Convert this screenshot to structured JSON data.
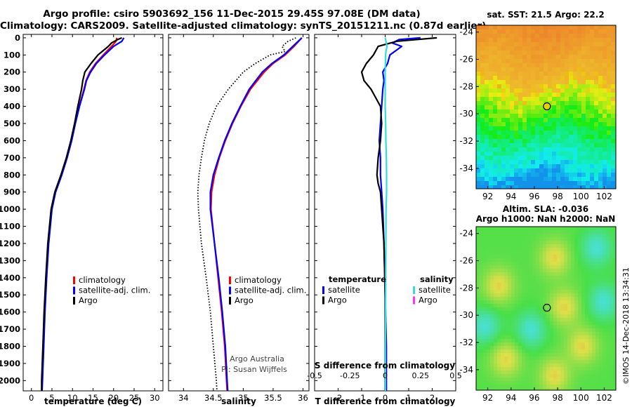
{
  "header": {
    "line1": "Argo profile: csiro 5903692_156 11-Dec-2015 29.45S 97.08E (DM data)",
    "line2": "Climatology: CARS2009. Satellite-adjusted climatology: synTS_20151211.nc (0.87d earlier)"
  },
  "depth_ticks": [
    0,
    100,
    200,
    300,
    400,
    500,
    600,
    700,
    800,
    900,
    1000,
    1100,
    1200,
    1300,
    1400,
    1500,
    1600,
    1700,
    1800,
    1900,
    2000
  ],
  "chart_data": [
    {
      "id": "temperature",
      "type": "line",
      "xlabel": "temperature (deg C)",
      "xlim": [
        -2,
        32
      ],
      "ylim": [
        2060,
        -20
      ],
      "xticks": [
        0,
        5,
        10,
        15,
        20,
        25,
        30
      ],
      "legend": [
        "climatology",
        "satellite-adj. clim.",
        "Argo"
      ],
      "series": [
        {
          "name": "climatology",
          "color": "#ff0000",
          "depth": [
            0,
            20,
            50,
            100,
            150,
            200,
            250,
            300,
            400,
            500,
            600,
            700,
            800,
            900,
            1000,
            1200,
            1400,
            1600,
            1800,
            2000,
            2060
          ],
          "values": [
            20.8,
            20.6,
            19.5,
            17.5,
            15.6,
            14.2,
            13.3,
            12.8,
            11.6,
            10.6,
            9.7,
            8.6,
            7.3,
            5.8,
            4.9,
            4.1,
            3.6,
            3.2,
            2.9,
            2.6,
            2.5
          ]
        },
        {
          "name": "satellite-adj. clim.",
          "color": "#0000ff",
          "depth": [
            0,
            20,
            50,
            100,
            150,
            200,
            250,
            300,
            400,
            500,
            600,
            700,
            800,
            900,
            1000,
            1200,
            1400,
            1600,
            1800,
            2000,
            2060
          ],
          "values": [
            22.5,
            22.0,
            20.0,
            17.8,
            15.8,
            14.4,
            13.4,
            12.9,
            11.7,
            10.7,
            9.8,
            8.7,
            7.4,
            5.9,
            5.0,
            4.2,
            3.7,
            3.3,
            3.0,
            2.7,
            2.6
          ]
        },
        {
          "name": "Argo",
          "color": "#000000",
          "depth": [
            0,
            10,
            30,
            50,
            100,
            150,
            200,
            250,
            300,
            400,
            500,
            600,
            700,
            800,
            900,
            1000,
            1200,
            1400,
            1600,
            1800,
            2000,
            2060
          ],
          "values": [
            22.0,
            21.0,
            19.5,
            18.7,
            16.2,
            14.5,
            13.0,
            12.5,
            12.2,
            11.3,
            10.5,
            9.6,
            8.5,
            7.2,
            5.7,
            4.8,
            4.0,
            3.5,
            3.1,
            2.8,
            2.5,
            2.5
          ]
        }
      ],
      "annotations": []
    },
    {
      "id": "salinity",
      "type": "line",
      "xlabel": "salinity",
      "xlim": [
        33.75,
        36.1
      ],
      "ylim": [
        2060,
        -20
      ],
      "xticks": [
        34,
        34.5,
        35,
        35.5,
        36
      ],
      "legend": [
        "climatology",
        "satellite-adj. clim.",
        "Argo"
      ],
      "series": [
        {
          "name": "climatology",
          "color": "#ff0000",
          "depth": [
            0,
            50,
            100,
            150,
            200,
            300,
            400,
            500,
            600,
            700,
            800,
            900,
            1000,
            1200,
            1400,
            1600,
            1800,
            2000,
            2060
          ],
          "values": [
            35.98,
            35.85,
            35.7,
            35.5,
            35.35,
            35.12,
            34.96,
            34.82,
            34.7,
            34.6,
            34.52,
            34.47,
            34.46,
            34.52,
            34.58,
            34.64,
            34.69,
            34.72,
            34.73
          ]
        },
        {
          "name": "satellite-adj. clim.",
          "color": "#0000ff",
          "depth": [
            0,
            50,
            100,
            150,
            200,
            300,
            400,
            500,
            600,
            700,
            800,
            900,
            1000,
            1200,
            1400,
            1600,
            1800,
            2000,
            2060
          ],
          "values": [
            35.98,
            35.83,
            35.68,
            35.48,
            35.32,
            35.1,
            34.95,
            34.81,
            34.69,
            34.59,
            34.5,
            34.45,
            34.45,
            34.52,
            34.59,
            34.65,
            34.7,
            34.73,
            34.74
          ]
        },
        {
          "name": "Argo",
          "color": "#000000",
          "style": "dotted",
          "depth": [
            0,
            20,
            50,
            80,
            100,
            150,
            200,
            300,
            400,
            500,
            600,
            700,
            800,
            900,
            1000,
            1200,
            1400,
            1600,
            1800,
            2000,
            2060
          ],
          "values": [
            35.88,
            35.75,
            35.65,
            35.7,
            35.45,
            35.2,
            35.0,
            34.75,
            34.55,
            34.43,
            34.35,
            34.3,
            34.26,
            34.24,
            34.25,
            34.3,
            34.38,
            34.45,
            34.5,
            34.55,
            34.56
          ]
        }
      ],
      "annotations": [
        "Argo Australia",
        "PI: Susan Wijffels"
      ]
    },
    {
      "id": "difference",
      "type": "line",
      "xlabel": "T difference from climatology",
      "xlabel_top": "S difference from climatology",
      "xlim": [
        -3.0,
        3.0
      ],
      "ylim": [
        2060,
        -20
      ],
      "xticks": [
        -2,
        -1,
        0,
        1,
        2
      ],
      "xticks_S": [
        -0.5,
        -0.25,
        0,
        0.25,
        0.5
      ],
      "xticks_S_labels": [
        "-0.5",
        "-0.25",
        "0",
        "0.25",
        "0.5"
      ],
      "legend_titles": [
        "temperature",
        "salinity"
      ],
      "legend_T": [
        "satellite",
        "Argo"
      ],
      "legend_S": [
        "satellite",
        "Argo"
      ],
      "series": [
        {
          "name": "T satellite",
          "color": "#0000ff",
          "depth": [
            0,
            10,
            30,
            50,
            70,
            100,
            150,
            200,
            250,
            300,
            400,
            500,
            600,
            700,
            800,
            900,
            1000,
            1200,
            1500,
            1800,
            2060
          ],
          "values": [
            1.5,
            0.6,
            0.3,
            0.7,
            0.5,
            0.2,
            0.1,
            -0.1,
            -0.05,
            -0.1,
            -0.15,
            -0.2,
            -0.25,
            -0.2,
            -0.2,
            -0.15,
            -0.1,
            -0.05,
            0.0,
            0.05,
            0.05
          ]
        },
        {
          "name": "T Argo",
          "color": "#000000",
          "depth": [
            0,
            20,
            50,
            100,
            150,
            200,
            250,
            300,
            350,
            400,
            500,
            600,
            700,
            800,
            850,
            900,
            1000,
            1200,
            1500,
            1800,
            2060
          ],
          "values": [
            2.2,
            0.5,
            -0.3,
            -0.5,
            -0.8,
            -1.0,
            -0.9,
            -0.6,
            -0.4,
            -0.2,
            -0.15,
            -0.2,
            -0.3,
            -0.35,
            -0.3,
            -0.2,
            -0.15,
            -0.05,
            0.0,
            0.0,
            0.0
          ]
        },
        {
          "name": "S satellite",
          "color": "#33dddd",
          "depth": [
            0,
            50,
            80,
            100,
            200,
            300,
            400,
            500,
            600,
            700,
            800,
            900,
            1000,
            1200,
            1500,
            1800,
            2060
          ],
          "values": [
            0.0,
            0.08,
            0.03,
            0.02,
            0.0,
            0.0,
            0.0,
            0.02,
            0.03,
            0.05,
            0.06,
            0.06,
            0.04,
            0.03,
            0.02,
            0.01,
            0.01
          ]
        },
        {
          "name": "S Argo",
          "color": "#ff33ff",
          "depth": [],
          "values": []
        }
      ]
    },
    {
      "id": "sst_map",
      "type": "heatmap",
      "title": "sat. SST: 21.5 Argo: 22.2",
      "xticks": [
        92,
        94,
        96,
        98,
        100,
        102
      ],
      "yticks": [
        -24,
        -26,
        -28,
        -30,
        -32,
        -34
      ],
      "xlim": [
        91,
        103
      ],
      "ylim": [
        -35.5,
        -23.5
      ],
      "marker": {
        "lon": 97.08,
        "lat": -29.45,
        "fill": "#e8d000"
      }
    },
    {
      "id": "sla_map",
      "type": "heatmap",
      "title": "Altim. SLA: -0.036",
      "subtitle": "Argo h1000: NaN h2000: NaN",
      "xticks": [
        92,
        94,
        96,
        98,
        100,
        102
      ],
      "yticks": [
        -24,
        -26,
        -28,
        -30,
        -32,
        -34
      ],
      "xlim": [
        91,
        103
      ],
      "ylim": [
        -35.5,
        -23.5
      ],
      "marker": {
        "lon": 97.08,
        "lat": -29.45,
        "fill": "none"
      },
      "side_label": "©IMOS 14-Dec-2018 13:34:31"
    }
  ]
}
